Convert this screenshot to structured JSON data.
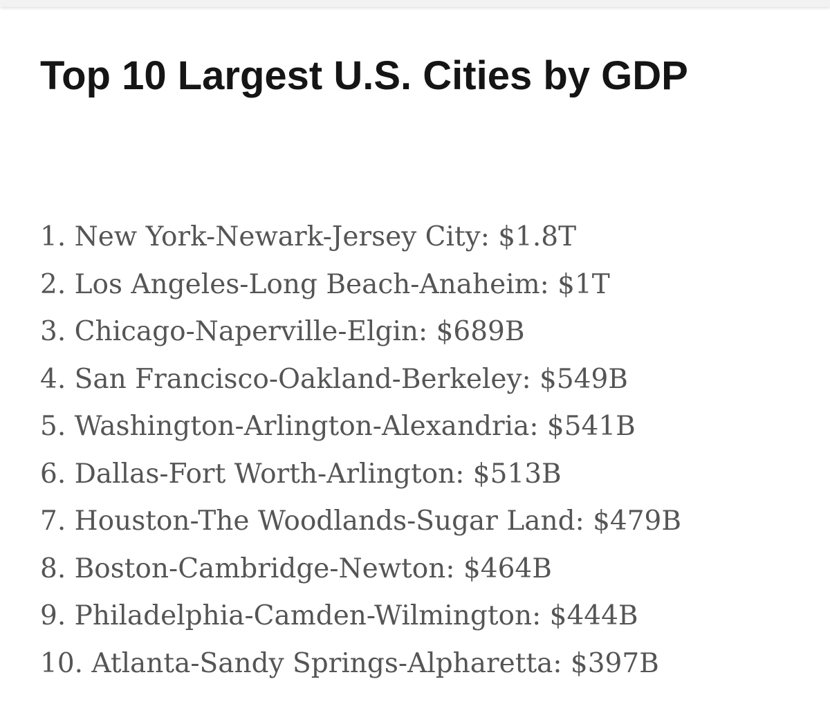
{
  "article": {
    "title": "Top 10 Largest U.S. Cities by GDP",
    "items": [
      "1. New York-Newark-Jersey City: $1.8T",
      "2. Los Angeles-Long Beach-Anaheim: $1T",
      "3. Chicago-Naperville-Elgin: $689B",
      "4. San Francisco-Oakland-Berkeley: $549B",
      "5. Washington-Arlington-Alexandria: $541B",
      "6. Dallas-Fort Worth-Arlington: $513B",
      "7. Houston-The Woodlands-Sugar Land: $479B",
      "8. Boston-Cambridge-Newton: $464B",
      "9. Philadelphia-Camden-Wilmington: $444B",
      "10. Atlanta-Sandy Springs-Alpharetta: $397B"
    ]
  }
}
